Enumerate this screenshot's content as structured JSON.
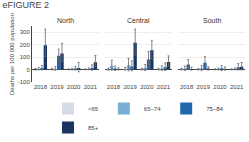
{
  "title": "eFIGURE 2",
  "chart_data": [
    {
      "type": "bar",
      "title": "North",
      "ylabel": "Deaths per 100 000 population",
      "categories": [
        "2018",
        "2019",
        "2020",
        "2021"
      ],
      "series": [
        {
          "name": "<65",
          "color": "#d4dce8",
          "values": [
            1,
            2,
            1,
            1
          ],
          "error_lo": [
            5,
            5,
            3,
            3
          ],
          "error_hi": [
            8,
            8,
            5,
            5
          ]
        },
        {
          "name": "65–74",
          "color": "#7aafd4",
          "values": [
            5,
            5,
            3,
            4
          ],
          "error_lo": [
            8,
            10,
            5,
            6
          ],
          "error_hi": [
            12,
            18,
            8,
            9
          ]
        },
        {
          "name": "75–84",
          "color": "#2166ac",
          "values": [
            12,
            110,
            8,
            12
          ],
          "error_lo": [
            15,
            45,
            12,
            18
          ],
          "error_hi": [
            20,
            55,
            18,
            25
          ]
        },
        {
          "name": "85+",
          "color": "#1a3560",
          "values": [
            195,
            130,
            12,
            58
          ],
          "error_lo": [
            90,
            65,
            30,
            35
          ],
          "error_hi": [
            130,
            80,
            45,
            55
          ]
        }
      ],
      "ylim": [
        -100,
        350
      ],
      "yticks": [
        -100,
        0,
        100,
        200,
        300
      ],
      "grid": true,
      "legend": "bottom"
    },
    {
      "type": "bar",
      "title": "Central",
      "categories": [
        "2018",
        "2019",
        "2020",
        "2021"
      ],
      "series": [
        {
          "name": "<65",
          "color": "#d4dce8",
          "values": [
            3,
            5,
            2,
            2
          ],
          "error_lo": [
            8,
            10,
            5,
            5
          ],
          "error_hi": [
            10,
            12,
            8,
            8
          ]
        },
        {
          "name": "65–74",
          "color": "#7aafd4",
          "values": [
            30,
            35,
            12,
            8
          ],
          "error_lo": [
            35,
            45,
            20,
            15
          ],
          "error_hi": [
            45,
            55,
            28,
            22
          ]
        },
        {
          "name": "75–84",
          "color": "#2166ac",
          "values": [
            8,
            25,
            80,
            18
          ],
          "error_lo": [
            15,
            35,
            55,
            25
          ],
          "error_hi": [
            20,
            45,
            65,
            35
          ]
        },
        {
          "name": "85+",
          "color": "#1a3560",
          "values": [
            5,
            215,
            155,
            60
          ],
          "error_lo": [
            8,
            95,
            70,
            35
          ],
          "error_hi": [
            10,
            110,
            80,
            50
          ]
        }
      ],
      "ylim": [
        -100,
        350
      ],
      "yticks": [
        -100,
        0,
        100,
        200,
        300
      ],
      "grid": true
    },
    {
      "type": "bar",
      "title": "South",
      "categories": [
        "2018",
        "2019",
        "2020",
        "2021"
      ],
      "series": [
        {
          "name": "<65",
          "color": "#d4dce8",
          "values": [
            2,
            2,
            1,
            1
          ],
          "error_lo": [
            5,
            5,
            3,
            3
          ],
          "error_hi": [
            8,
            8,
            5,
            5
          ]
        },
        {
          "name": "65–74",
          "color": "#7aafd4",
          "values": [
            8,
            10,
            3,
            3
          ],
          "error_lo": [
            15,
            18,
            6,
            6
          ],
          "error_hi": [
            20,
            22,
            9,
            9
          ]
        },
        {
          "name": "75–84",
          "color": "#2166ac",
          "values": [
            40,
            55,
            10,
            18
          ],
          "error_lo": [
            30,
            40,
            18,
            22
          ],
          "error_hi": [
            40,
            48,
            22,
            30
          ]
        },
        {
          "name": "85+",
          "color": "#1a3560",
          "values": [
            5,
            8,
            5,
            22
          ],
          "error_lo": [
            10,
            12,
            10,
            25
          ],
          "error_hi": [
            15,
            15,
            15,
            35
          ]
        }
      ],
      "ylim": [
        -100,
        350
      ],
      "yticks": [
        -100,
        0,
        100,
        200,
        300
      ],
      "grid": true
    }
  ]
}
